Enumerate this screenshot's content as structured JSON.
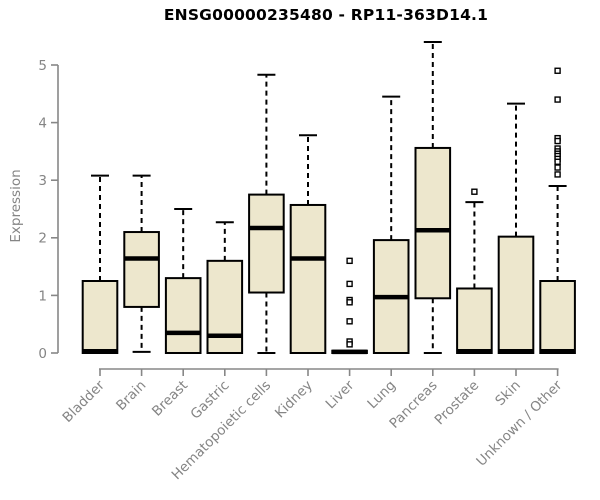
{
  "figure": {
    "title": "ENSG00000235480 - RP11-363D14.1"
  },
  "chart_data": {
    "type": "boxplot",
    "title": "ENSG00000235480 - RP11-363D14.1",
    "xlabel": "",
    "ylabel": "Expression",
    "ylim": [
      0,
      5
    ],
    "yticks": [
      0,
      1,
      2,
      3,
      4,
      5
    ],
    "grid": false,
    "legend": false,
    "categories": [
      "Bladder",
      "Brain",
      "Breast",
      "Gastric",
      "Hematopoietic cells",
      "Kidney",
      "Liver",
      "Lung",
      "Pancreas",
      "Prostate",
      "Skin",
      "Unknown / Other"
    ],
    "series": [
      {
        "name": "Bladder",
        "min": 0,
        "q1": 0,
        "median": 0.03,
        "q3": 1.25,
        "max": 3.08,
        "outliers": []
      },
      {
        "name": "Brain",
        "min": 0.02,
        "q1": 0.8,
        "median": 1.64,
        "q3": 2.1,
        "max": 3.08,
        "outliers": []
      },
      {
        "name": "Breast",
        "min": 0,
        "q1": 0,
        "median": 0.35,
        "q3": 1.3,
        "max": 2.5,
        "outliers": []
      },
      {
        "name": "Gastric",
        "min": 0,
        "q1": 0,
        "median": 0.3,
        "q3": 1.6,
        "max": 2.27,
        "outliers": []
      },
      {
        "name": "Hematopoietic cells",
        "min": 0,
        "q1": 1.05,
        "median": 2.17,
        "q3": 2.75,
        "max": 4.83,
        "outliers": []
      },
      {
        "name": "Kidney",
        "min": 0,
        "q1": 0,
        "median": 1.64,
        "q3": 2.57,
        "max": 3.78,
        "outliers": []
      },
      {
        "name": "Liver",
        "min": 0,
        "q1": 0,
        "median": 0.02,
        "q3": 0.04,
        "max": 0.04,
        "outliers": [
          1.6,
          1.2,
          0.92,
          0.88,
          0.55,
          0.2,
          0.15
        ]
      },
      {
        "name": "Lung",
        "min": 0,
        "q1": 0,
        "median": 0.97,
        "q3": 1.96,
        "max": 4.45,
        "outliers": []
      },
      {
        "name": "Pancreas",
        "min": 0,
        "q1": 0.95,
        "median": 2.13,
        "q3": 3.56,
        "max": 5.4,
        "outliers": []
      },
      {
        "name": "Prostate",
        "min": 0,
        "q1": 0,
        "median": 0.03,
        "q3": 1.12,
        "max": 2.62,
        "outliers": [
          2.8
        ]
      },
      {
        "name": "Skin",
        "min": 0,
        "q1": 0,
        "median": 0.03,
        "q3": 2.02,
        "max": 4.33,
        "outliers": []
      },
      {
        "name": "Unknown / Other",
        "min": 0,
        "q1": 0,
        "median": 0.03,
        "q3": 1.25,
        "max": 2.9,
        "outliers": [
          4.9,
          4.4,
          3.73,
          3.68,
          3.55,
          3.5,
          3.46,
          3.42,
          3.37,
          3.32,
          3.22,
          3.1
        ]
      }
    ],
    "colors": {
      "background": "#FFFFFF",
      "box_fill": "#EDE7CD",
      "box_border": "#000000",
      "median": "#000000",
      "whisker": "#000000",
      "outlier_stroke": "#000000",
      "outlier_fill": "#FFFFFF",
      "axis": "#878787",
      "tick_text": "#858585",
      "title_text": "#000000"
    }
  }
}
